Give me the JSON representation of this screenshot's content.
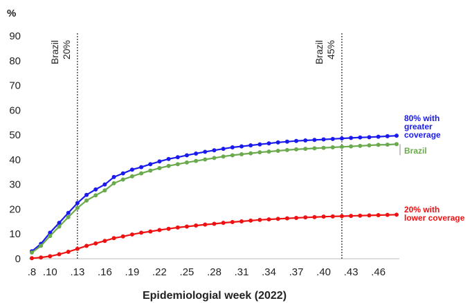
{
  "chart_data": {
    "type": "line",
    "unit_label": "%",
    "xlabel": "Epidemiologial week (2022)",
    "ylim": [
      0,
      90
    ],
    "yticks": [
      "0",
      "10",
      "20",
      "30",
      "40",
      "50",
      "60",
      "70",
      "80",
      "90"
    ],
    "xtick_labels": [
      ".8",
      ".10",
      ".13",
      ".16",
      ".19",
      ".22",
      ".25",
      ".28",
      ".31",
      ".34",
      ".37",
      ".40",
      ".43",
      ".46"
    ],
    "x": [
      8,
      9,
      10,
      11,
      12,
      13,
      14,
      15,
      16,
      17,
      18,
      19,
      20,
      21,
      22,
      23,
      24,
      25,
      26,
      27,
      28,
      29,
      30,
      31,
      32,
      33,
      34,
      35,
      36,
      37,
      38,
      39,
      40,
      41,
      42,
      43,
      44,
      45,
      46,
      47,
      48
    ],
    "series": [
      {
        "name": "80% with greater coverage",
        "label_lines": [
          "80% with",
          "greater",
          "coverage"
        ],
        "color": "#1a1aee",
        "values": [
          3,
          6,
          10.5,
          14.5,
          18.5,
          22.5,
          25.8,
          28,
          30,
          33,
          34.5,
          36,
          37,
          38.2,
          39.3,
          40.3,
          41,
          41.8,
          42.5,
          43.2,
          43.8,
          44.4,
          45,
          45.4,
          45.8,
          46.2,
          46.6,
          47,
          47.3,
          47.6,
          47.8,
          48,
          48.2,
          48.4,
          48.6,
          48.8,
          49,
          49.1,
          49.3,
          49.5,
          49.7
        ]
      },
      {
        "name": "Brazil",
        "label_lines": [
          "Brazil"
        ],
        "color": "#6aaa4c",
        "values": [
          2.5,
          5.2,
          9.2,
          13,
          16.8,
          20.5,
          23.5,
          25.6,
          27.6,
          30.5,
          32,
          33.3,
          34.5,
          35.6,
          36.6,
          37.5,
          38.2,
          38.9,
          39.5,
          40.1,
          40.7,
          41.3,
          41.8,
          42.2,
          42.6,
          43,
          43.3,
          43.6,
          43.9,
          44.2,
          44.4,
          44.6,
          44.8,
          45,
          45.2,
          45.4,
          45.6,
          45.8,
          46,
          46.1,
          46.3
        ]
      },
      {
        "name": "20% with lower coverage",
        "label_lines": [
          "20% with",
          "lower coverage"
        ],
        "color": "#ee1111",
        "values": [
          0.2,
          0.5,
          1,
          1.8,
          2.8,
          4,
          5.2,
          6.2,
          7.2,
          8.3,
          9,
          9.8,
          10.5,
          11,
          11.6,
          12.1,
          12.6,
          13,
          13.4,
          13.8,
          14.1,
          14.5,
          14.8,
          15.1,
          15.4,
          15.7,
          15.9,
          16.1,
          16.3,
          16.5,
          16.7,
          16.8,
          17,
          17.1,
          17.2,
          17.3,
          17.4,
          17.5,
          17.6,
          17.7,
          17.8
        ]
      }
    ],
    "vlines": [
      {
        "x": 13,
        "label_lines": [
          "Brazil",
          "20%"
        ]
      },
      {
        "x": 42,
        "label_lines": [
          "Brazil",
          "45%"
        ]
      }
    ],
    "legend": "right-of-line-ends",
    "grid": false
  }
}
